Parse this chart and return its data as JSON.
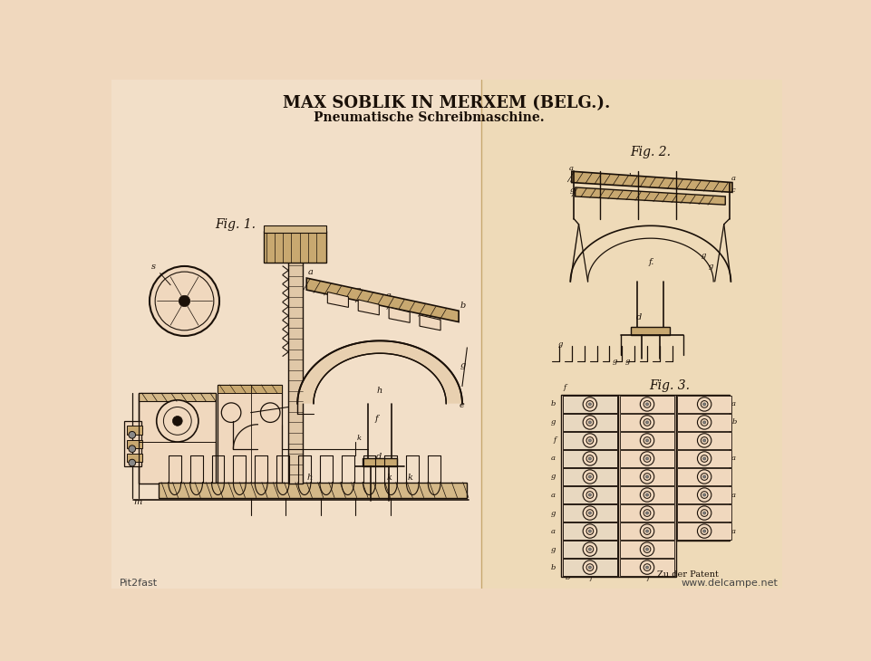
{
  "title_line1": "MAX SOBLIK IN MERXEM (BELG.).",
  "title_line2": "Pneumatische Schreibmaschine.",
  "bg_color": "#f0d8be",
  "line_color": "#1a1008",
  "hatch_color": "#2a1808",
  "fig_label1": "Fig. 1.",
  "fig_label2": "Fig. 2.",
  "fig_label3": "Fig. 3.",
  "watermark_left": "Pit2fast",
  "watermark_right": "www.delcampe.net",
  "footer_text": "Zu der Patent",
  "title_fontsize": 13,
  "subtitle_fontsize": 10,
  "fig_label_fontsize": 10,
  "watermark_fontsize": 8
}
